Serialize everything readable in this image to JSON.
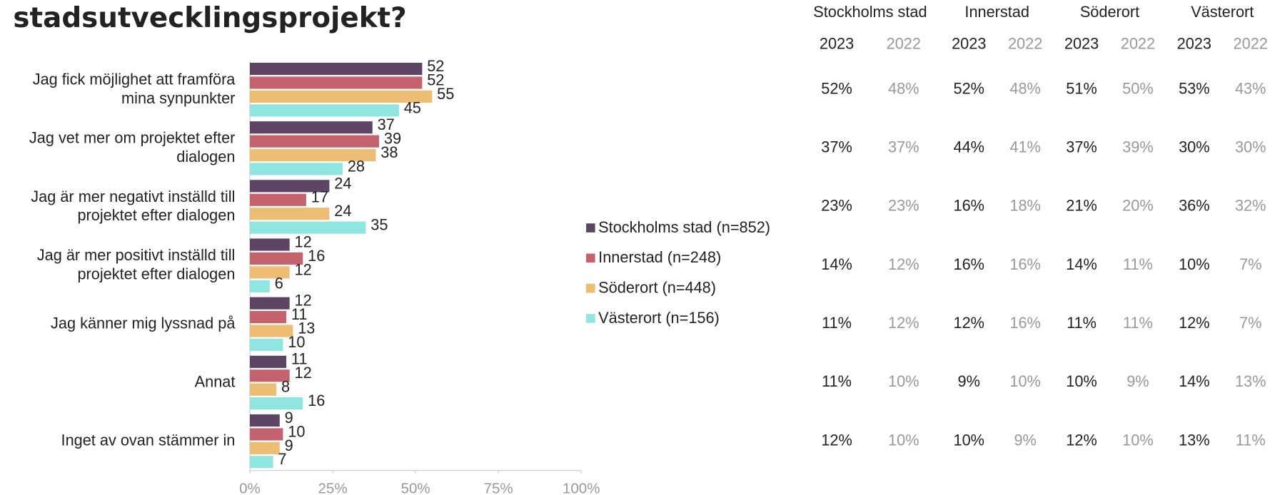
{
  "chart_data": {
    "type": "bar",
    "orientation": "horizontal",
    "title": "stadsutvecklingsprojekt?",
    "categories": [
      "Jag fick möjlighet att framföra mina synpunkter",
      "Jag vet mer om projektet efter dialogen",
      "Jag är mer negativt inställd till projektet efter dialogen",
      "Jag är mer positivt inställd till projektet efter dialogen",
      "Jag känner mig lyssnad på",
      "Annat",
      "Inget av ovan stämmer in"
    ],
    "series": [
      {
        "name": "Stockholms stad (n=852)",
        "color": "#5e4565",
        "values": [
          52,
          37,
          24,
          12,
          12,
          11,
          9
        ]
      },
      {
        "name": "Innerstad (n=248)",
        "color": "#c4636e",
        "values": [
          52,
          39,
          17,
          16,
          11,
          12,
          10
        ]
      },
      {
        "name": "Söderort (n=448)",
        "color": "#ecbd72",
        "values": [
          55,
          38,
          24,
          12,
          13,
          8,
          9
        ]
      },
      {
        "name": "Västerort (n=156)",
        "color": "#8fe6e0",
        "values": [
          45,
          28,
          35,
          6,
          10,
          16,
          7
        ]
      }
    ],
    "xlim": [
      0,
      100
    ],
    "xticks": [
      {
        "value": 0,
        "label": "0%"
      },
      {
        "value": 25,
        "label": "25%"
      },
      {
        "value": 50,
        "label": "50%"
      },
      {
        "value": 75,
        "label": "75%"
      },
      {
        "value": 100,
        "label": "100%"
      }
    ],
    "legend": "right"
  },
  "table": {
    "groups": [
      "Stockholms stad",
      "Innerstad",
      "Söderort",
      "Västerort"
    ],
    "years": [
      "2023",
      "2022",
      "2023",
      "2022",
      "2023",
      "2022",
      "2023",
      "2022"
    ],
    "rows": [
      [
        "52%",
        "48%",
        "52%",
        "48%",
        "51%",
        "50%",
        "53%",
        "43%"
      ],
      [
        "37%",
        "37%",
        "44%",
        "41%",
        "37%",
        "39%",
        "30%",
        "30%"
      ],
      [
        "23%",
        "23%",
        "16%",
        "18%",
        "21%",
        "20%",
        "36%",
        "32%"
      ],
      [
        "14%",
        "12%",
        "16%",
        "16%",
        "14%",
        "11%",
        "10%",
        "7%"
      ],
      [
        "11%",
        "12%",
        "12%",
        "16%",
        "11%",
        "11%",
        "12%",
        "7%"
      ],
      [
        "11%",
        "10%",
        "9%",
        "10%",
        "10%",
        "9%",
        "14%",
        "13%"
      ],
      [
        "12%",
        "10%",
        "10%",
        "9%",
        "12%",
        "10%",
        "13%",
        "11%"
      ]
    ]
  }
}
